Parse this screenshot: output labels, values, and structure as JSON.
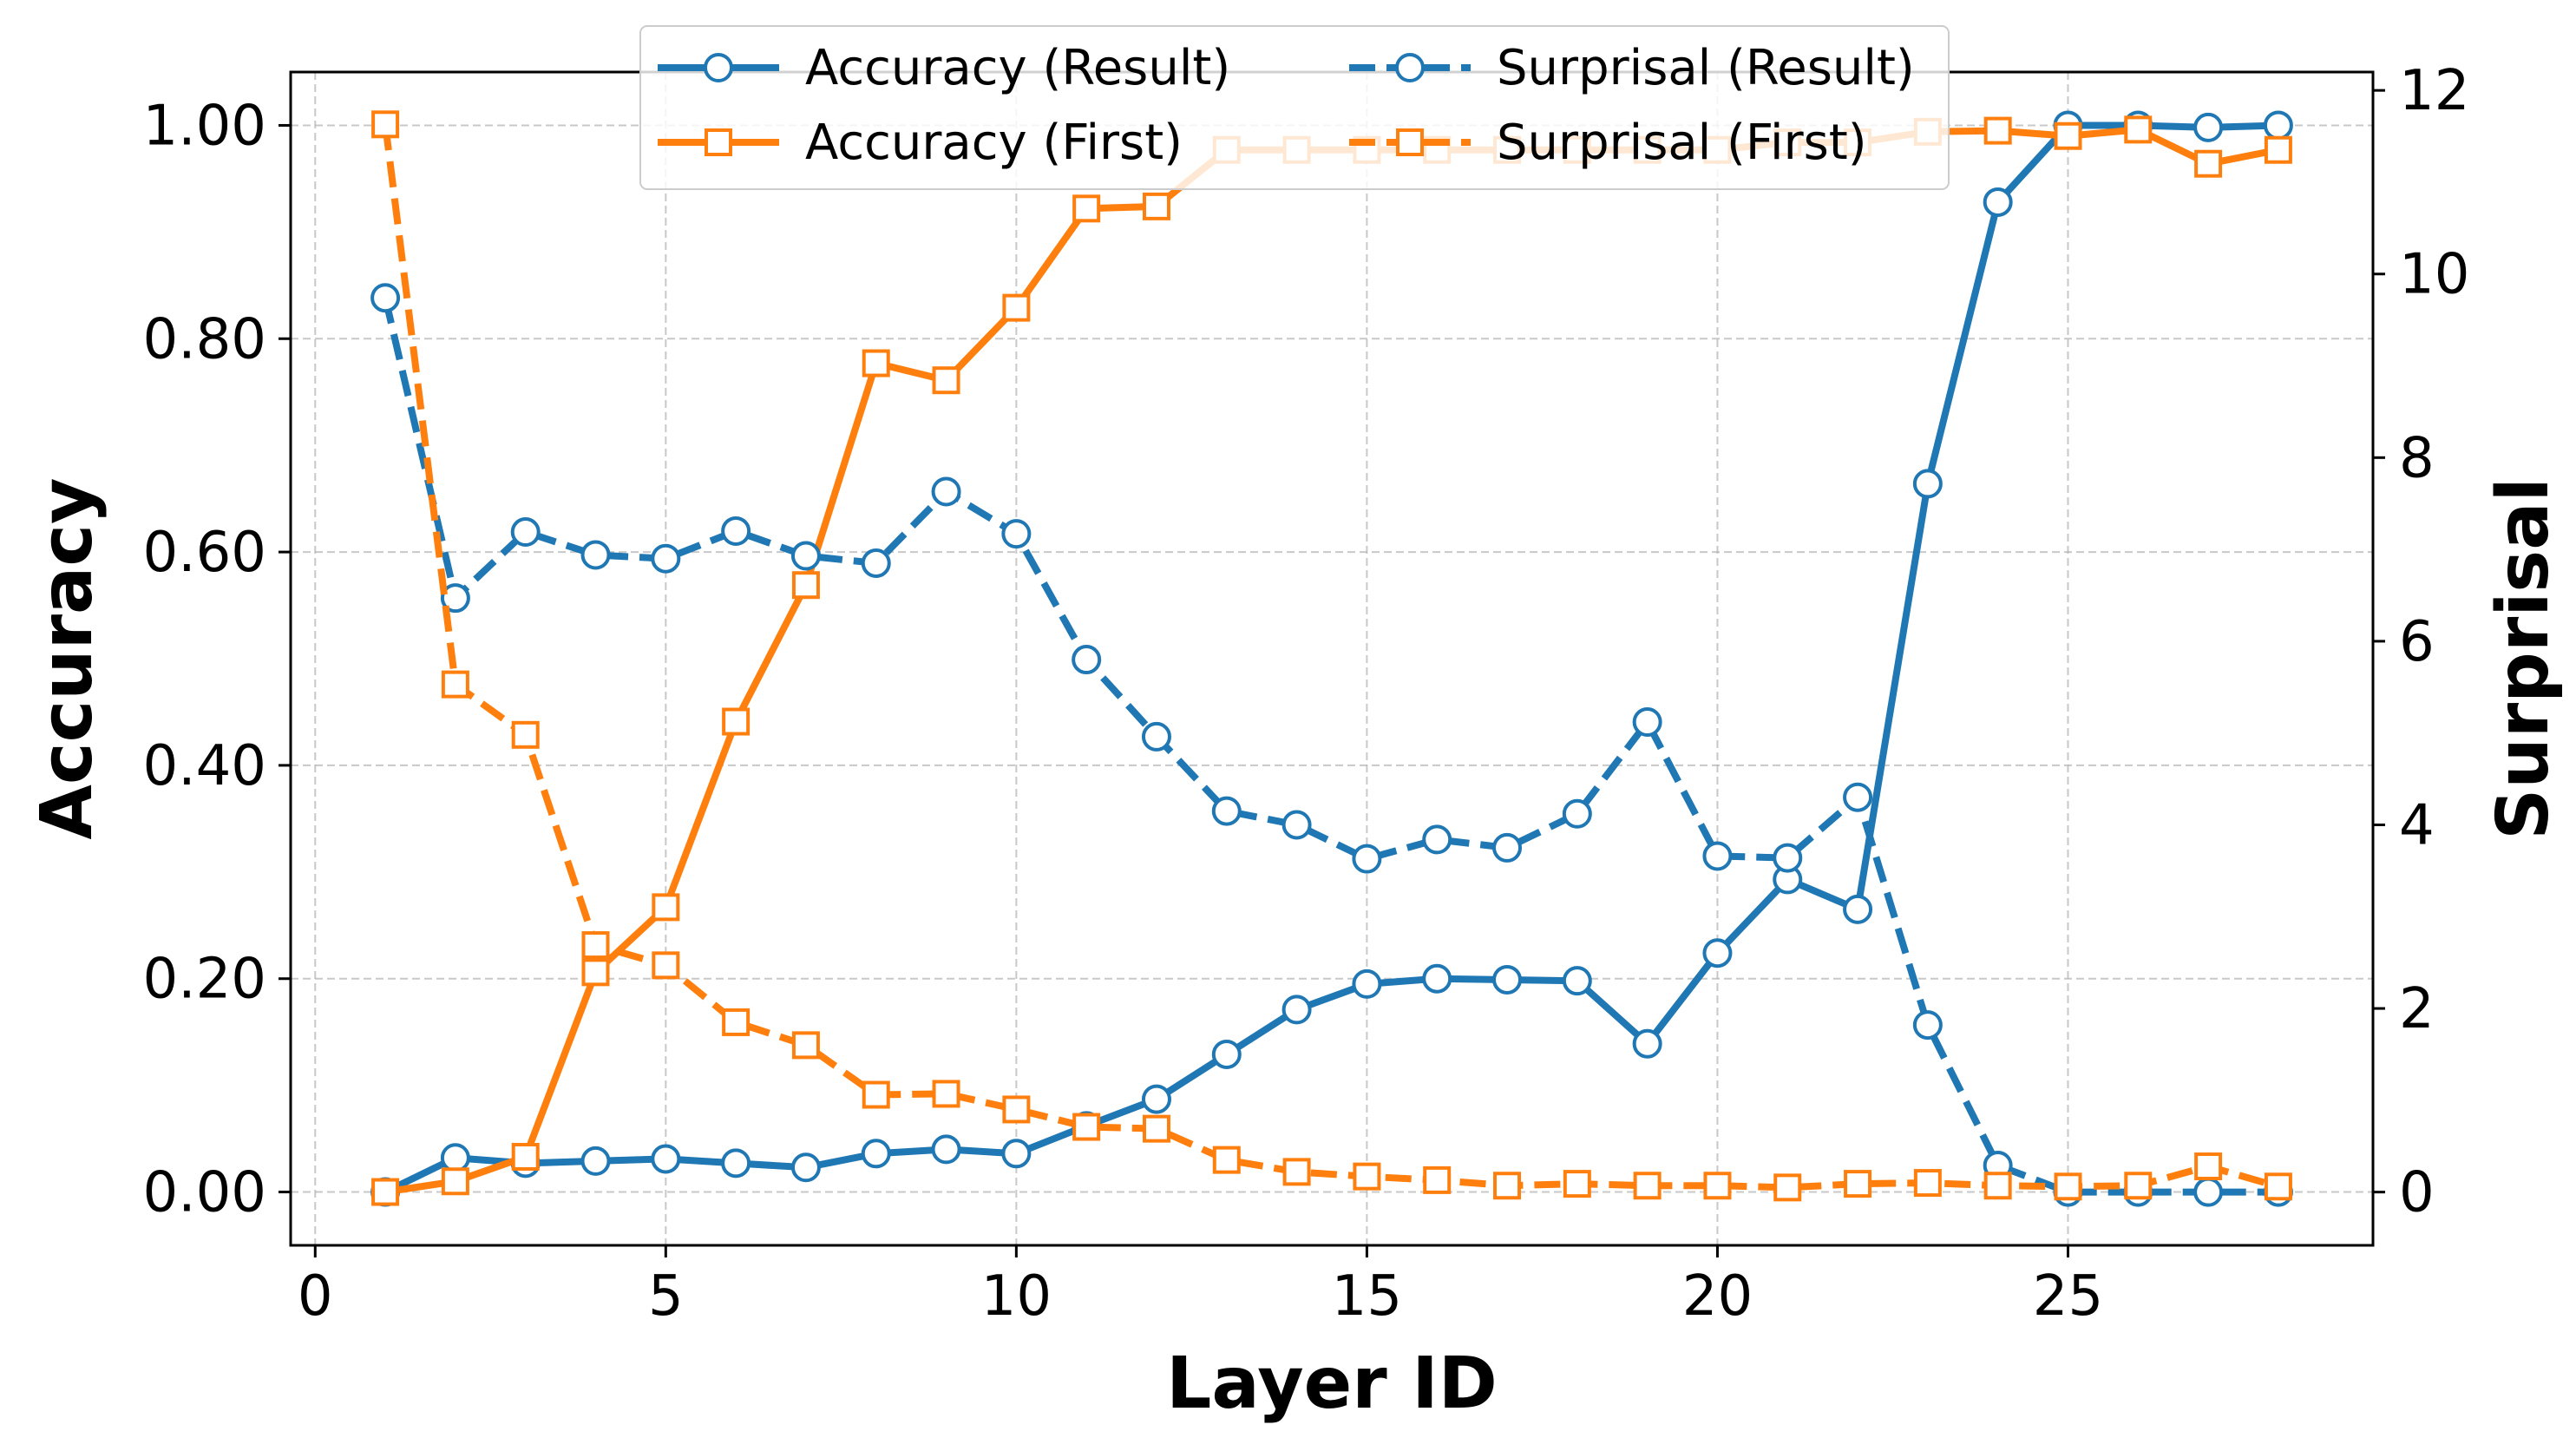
{
  "chart_data": {
    "type": "line",
    "title": "",
    "xlabel": "Layer ID",
    "ylabel_left": "Accuracy",
    "ylabel_right": "Surprisal",
    "xlim": [
      -0.35,
      29.35
    ],
    "ylim_left": [
      -0.05,
      1.05
    ],
    "ylim_right": [
      -0.58,
      12.2
    ],
    "xticks": [
      0,
      5,
      10,
      15,
      20,
      25
    ],
    "yticks_left": [
      0.0,
      0.2,
      0.4,
      0.6,
      0.8,
      1.0
    ],
    "yticks_left_labels": [
      "0.00",
      "0.20",
      "0.40",
      "0.60",
      "0.80",
      "1.00"
    ],
    "yticks_right": [
      0,
      2,
      4,
      6,
      8,
      10,
      12
    ],
    "grid": true,
    "legend_placement": "top-center",
    "x": [
      1,
      2,
      3,
      4,
      5,
      6,
      7,
      8,
      9,
      10,
      11,
      12,
      13,
      14,
      15,
      16,
      17,
      18,
      19,
      20,
      21,
      22,
      23,
      24,
      25,
      26,
      27,
      28
    ],
    "series": [
      {
        "name": "Accuracy (Result)",
        "axis": "left",
        "color": "#1f77b4",
        "linestyle": "solid",
        "marker": "circle",
        "values": [
          0.0,
          0.032,
          0.027,
          0.029,
          0.031,
          0.027,
          0.023,
          0.036,
          0.04,
          0.036,
          0.062,
          0.087,
          0.129,
          0.171,
          0.195,
          0.2,
          0.199,
          0.198,
          0.139,
          0.224,
          0.293,
          0.265,
          0.664,
          0.928,
          1.0,
          1.0,
          0.998,
          1.0
        ]
      },
      {
        "name": "Accuracy (First)",
        "axis": "left",
        "color": "#ff7f0e",
        "linestyle": "solid",
        "marker": "square",
        "values": [
          0.0,
          0.01,
          0.033,
          0.206,
          0.267,
          0.441,
          0.569,
          0.777,
          0.761,
          0.829,
          0.922,
          0.924,
          0.977,
          0.977,
          0.977,
          0.977,
          0.977,
          0.977,
          0.977,
          0.977,
          0.984,
          0.984,
          0.994,
          0.995,
          0.99,
          0.996,
          0.964,
          0.977
        ]
      },
      {
        "name": "Surprisal (Result)",
        "axis": "right",
        "color": "#1f77b4",
        "linestyle": "dashed",
        "marker": "circle",
        "values": [
          9.74,
          6.47,
          7.19,
          6.94,
          6.9,
          7.2,
          6.93,
          6.85,
          7.63,
          7.17,
          5.8,
          4.96,
          4.15,
          4.0,
          3.63,
          3.84,
          3.75,
          4.12,
          5.12,
          3.66,
          3.64,
          4.3,
          1.82,
          0.29,
          0.0,
          0.0,
          0.0,
          0.0
        ]
      },
      {
        "name": "Surprisal (First)",
        "axis": "right",
        "color": "#ff7f0e",
        "linestyle": "dashed",
        "marker": "square",
        "values": [
          11.63,
          5.53,
          4.98,
          2.69,
          2.47,
          1.85,
          1.6,
          1.06,
          1.07,
          0.9,
          0.71,
          0.69,
          0.35,
          0.22,
          0.17,
          0.13,
          0.07,
          0.09,
          0.07,
          0.07,
          0.05,
          0.09,
          0.1,
          0.07,
          0.06,
          0.07,
          0.28,
          0.06
        ]
      }
    ]
  }
}
